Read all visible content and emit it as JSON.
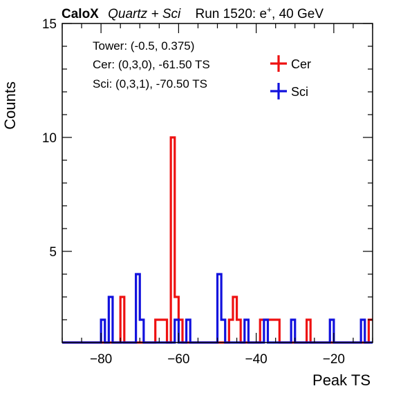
{
  "header": {
    "brand": "CaloX",
    "subtitle": "Quartz + Sci",
    "run_prefix": "Run 1520: e",
    "run_sup": "+",
    "run_suffix": ", 40 GeV"
  },
  "info_box": {
    "line1": "Tower: (-0.5, 0.375)",
    "line2": "Cer: (0,3,0), -61.50 TS",
    "line3": "Sci: (0,3,1), -70.50 TS"
  },
  "chart_data": {
    "type": "histogram",
    "xlabel": "Peak TS",
    "ylabel": "Counts",
    "xlim": [
      -90,
      -10
    ],
    "ylim": [
      1,
      15
    ],
    "bin_width": 1,
    "x_ticks": [
      -80,
      -60,
      -40,
      -20
    ],
    "y_ticks": [
      5,
      10,
      15
    ],
    "legend_position": "top-right",
    "series": [
      {
        "name": "Cer",
        "color": "#ee1111",
        "bins": [
          {
            "x": -75,
            "count": 3
          },
          {
            "x": -66,
            "count": 2
          },
          {
            "x": -65,
            "count": 2
          },
          {
            "x": -64,
            "count": 2
          },
          {
            "x": -62,
            "count": 10
          },
          {
            "x": -61,
            "count": 3
          },
          {
            "x": -60,
            "count": 2
          },
          {
            "x": -47,
            "count": 2
          },
          {
            "x": -46,
            "count": 3
          },
          {
            "x": -45,
            "count": 2
          },
          {
            "x": -39,
            "count": 2
          },
          {
            "x": -38,
            "count": 2
          },
          {
            "x": -37,
            "count": 2
          },
          {
            "x": -36,
            "count": 2
          },
          {
            "x": -35,
            "count": 2
          },
          {
            "x": -27,
            "count": 2
          },
          {
            "x": -11,
            "count": 2
          }
        ]
      },
      {
        "name": "Sci",
        "color": "#1111dd",
        "bins": [
          {
            "x": -80,
            "count": 2
          },
          {
            "x": -78,
            "count": 3
          },
          {
            "x": -71,
            "count": 4
          },
          {
            "x": -70,
            "count": 2
          },
          {
            "x": -61,
            "count": 2
          },
          {
            "x": -58,
            "count": 2
          },
          {
            "x": -50,
            "count": 4
          },
          {
            "x": -49,
            "count": 2
          },
          {
            "x": -43,
            "count": 2
          },
          {
            "x": -38,
            "count": 2
          },
          {
            "x": -31,
            "count": 2
          },
          {
            "x": -21,
            "count": 2
          },
          {
            "x": -13,
            "count": 2
          }
        ]
      }
    ]
  }
}
